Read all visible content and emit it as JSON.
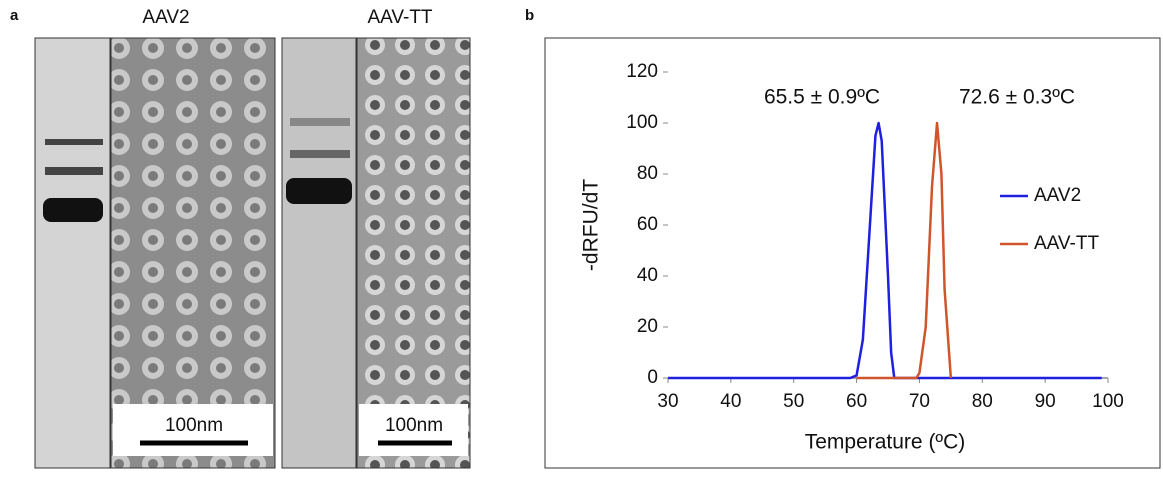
{
  "panels": {
    "a": {
      "label": "a",
      "images": [
        {
          "title": "AAV2",
          "scale_bar": "100nm"
        },
        {
          "title": "AAV-TT",
          "scale_bar": "100nm"
        }
      ]
    },
    "b": {
      "label": "b"
    }
  },
  "chart_data": {
    "type": "line",
    "x_label": "Temperature (ºC)",
    "y_label": "-dRFU/dT",
    "annotations": [
      "65.5 ± 0.9ºC",
      "72.6 ± 0.3ºC"
    ],
    "x": [
      30,
      59,
      60,
      61,
      62,
      63,
      63.5,
      64,
      65,
      65.5,
      66,
      69.5,
      70,
      71,
      72,
      72.8,
      73.5,
      74,
      75,
      99
    ],
    "series": [
      {
        "name": "AAV2",
        "color": "#1f1fe0",
        "values": [
          0,
          0,
          1,
          15,
          55,
          95,
          100,
          93,
          40,
          10,
          0,
          0,
          0,
          0,
          0,
          0,
          0,
          0,
          0,
          0
        ]
      },
      {
        "name": "AAV-TT",
        "color": "#d0552a",
        "values": [
          null,
          null,
          0,
          0,
          0,
          0,
          0,
          0,
          0,
          0,
          0,
          0,
          2,
          20,
          75,
          100,
          80,
          35,
          0,
          null
        ]
      }
    ],
    "xlim": [
      30,
      100
    ],
    "xticks": [
      30,
      40,
      50,
      60,
      70,
      80,
      90,
      100
    ],
    "ylim": [
      0,
      120
    ],
    "yticks": [
      0,
      20,
      40,
      60,
      80,
      100,
      120
    ],
    "legend": "right"
  }
}
